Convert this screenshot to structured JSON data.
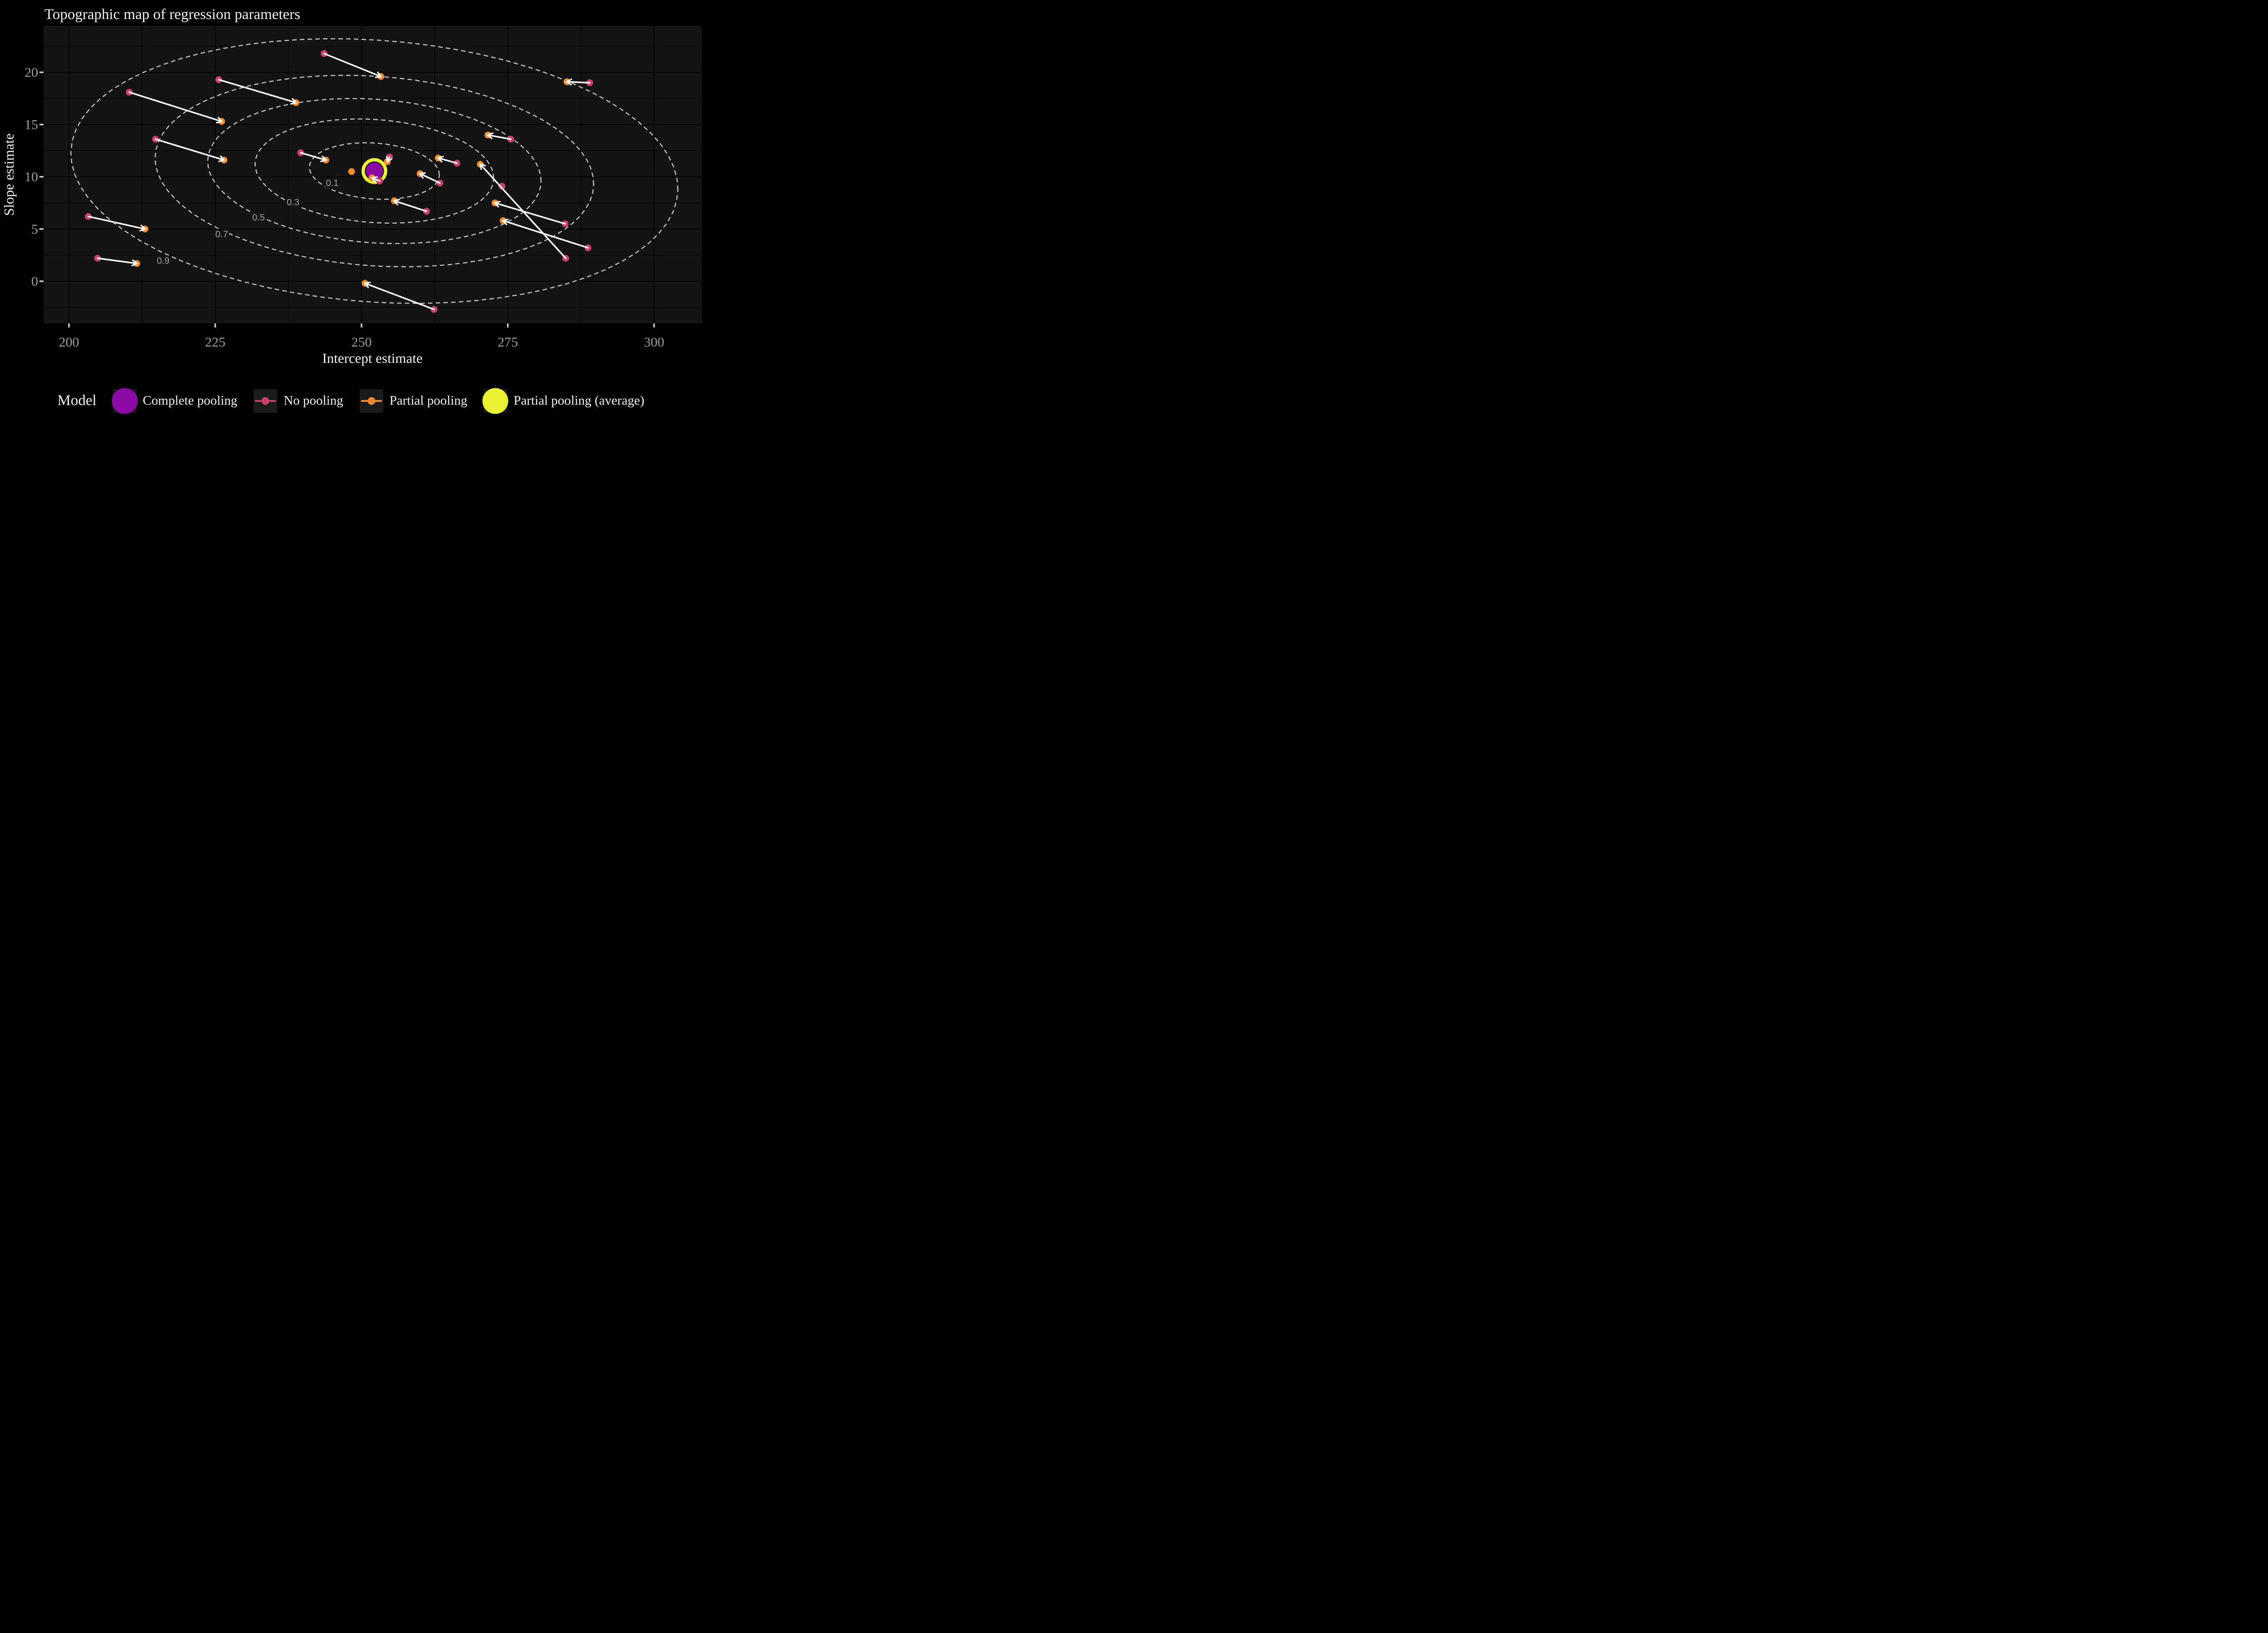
{
  "title": "Topographic map of regression parameters",
  "axes": {
    "x_label": "Intercept estimate",
    "y_label": "Slope estimate"
  },
  "legend": {
    "title": "Model",
    "items": [
      {
        "label": "Complete pooling",
        "type": "big-dot",
        "color_key": "purple"
      },
      {
        "label": "No pooling",
        "type": "dot-line",
        "color_key": "pink"
      },
      {
        "label": "Partial pooling",
        "type": "dot-line",
        "color_key": "orange"
      },
      {
        "label": "Partial pooling (average)",
        "type": "big-dot",
        "color_key": "yellow"
      }
    ]
  },
  "colors": {
    "background": "#000000",
    "panel": "#141414",
    "grid": "#000000",
    "contour": "#c9c9c9",
    "contour_label": "#9e9e9e",
    "tick_mark": "#cccccc",
    "tick_label": "#9e9e9e",
    "text": "#f5f1e8",
    "arrow": "#ffffff",
    "pink": "#c84169",
    "orange": "#f08a2e",
    "purple": "#8b0aa5",
    "yellow": "#e9f235"
  },
  "chart_data": {
    "type": "scatter",
    "title": "Topographic map of regression parameters",
    "xlabel": "Intercept estimate",
    "ylabel": "Slope estimate",
    "x_ticks": [
      200,
      225,
      250,
      275,
      300
    ],
    "y_ticks": [
      0,
      5,
      10,
      15,
      20
    ],
    "x_minor": [
      212.5,
      237.5,
      262.5,
      287.5
    ],
    "y_minor": [
      -2.5,
      2.5,
      7.5,
      12.5,
      17.5,
      22.5
    ],
    "xlim": [
      195.66,
      308.14
    ],
    "ylim": [
      -4.04,
      24.45
    ],
    "grid": true,
    "legend_position": "bottom",
    "contours": {
      "center": [
        252.2,
        10.55
      ],
      "angle_deg": -2,
      "levels": [
        {
          "level": "0.1",
          "rx": 11.1,
          "ry": 2.68,
          "label": [
            245.0,
            9.35
          ]
        },
        {
          "level": "0.3",
          "rx": 20.4,
          "ry": 4.94,
          "label": [
            238.3,
            7.5
          ]
        },
        {
          "level": "0.5",
          "rx": 28.5,
          "ry": 6.88,
          "label": [
            232.4,
            6.05
          ]
        },
        {
          "level": "0.7",
          "rx": 37.5,
          "ry": 9.08,
          "label": [
            226.1,
            4.45
          ]
        },
        {
          "level": "0.9",
          "rx": 51.9,
          "ry": 12.55,
          "label": [
            216.1,
            1.9
          ]
        }
      ]
    },
    "series": [
      {
        "name": "No pooling",
        "color_key": "pink"
      },
      {
        "name": "Partial pooling",
        "color_key": "orange"
      },
      {
        "name": "Complete pooling",
        "color_key": "purple"
      },
      {
        "name": "Partial pooling (average)",
        "color_key": "yellow"
      }
    ],
    "pairs": [
      {
        "no_pooling": [
          243.6,
          21.8
        ],
        "partial_pooling": [
          253.3,
          19.6
        ]
      },
      {
        "no_pooling": [
          289.0,
          19.0
        ],
        "partial_pooling": [
          285.1,
          19.1
        ]
      },
      {
        "no_pooling": [
          210.3,
          18.1
        ],
        "partial_pooling": [
          226.1,
          15.3
        ]
      },
      {
        "no_pooling": [
          225.6,
          19.3
        ],
        "partial_pooling": [
          238.8,
          17.1
        ]
      },
      {
        "no_pooling": [
          214.8,
          13.6
        ],
        "partial_pooling": [
          226.5,
          11.6
        ]
      },
      {
        "no_pooling": [
          275.5,
          13.6
        ],
        "partial_pooling": [
          271.6,
          14.0
        ]
      },
      {
        "no_pooling": [
          239.6,
          12.3
        ],
        "partial_pooling": [
          243.9,
          11.6
        ]
      },
      {
        "no_pooling": [
          266.3,
          11.3
        ],
        "partial_pooling": [
          263.1,
          11.8
        ]
      },
      {
        "no_pooling": [
          263.4,
          9.4
        ],
        "partial_pooling": [
          260.0,
          10.3
        ]
      },
      {
        "no_pooling": [
          284.9,
          2.2
        ],
        "partial_pooling": [
          270.3,
          11.2
        ]
      },
      {
        "no_pooling": [
          261.1,
          6.7
        ],
        "partial_pooling": [
          255.6,
          7.7
        ]
      },
      {
        "no_pooling": [
          203.3,
          6.2
        ],
        "partial_pooling": [
          213.0,
          5.0
        ]
      },
      {
        "no_pooling": [
          204.9,
          2.2
        ],
        "partial_pooling": [
          211.6,
          1.7
        ]
      },
      {
        "no_pooling": [
          284.8,
          5.5
        ],
        "partial_pooling": [
          272.8,
          7.5
        ]
      },
      {
        "no_pooling": [
          288.7,
          3.2
        ],
        "partial_pooling": [
          274.2,
          5.8
        ]
      },
      {
        "no_pooling": [
          262.4,
          -2.7
        ],
        "partial_pooling": [
          250.6,
          -0.2
        ]
      },
      {
        "no_pooling": [
          253.1,
          9.6
        ],
        "partial_pooling": [
          251.8,
          9.9
        ]
      },
      {
        "no_pooling": [
          254.8,
          11.9
        ],
        "partial_pooling": [
          254.4,
          11.45
        ]
      }
    ],
    "lone_no_pooling": [
      [
        274.0,
        9.1
      ]
    ],
    "lone_partial_pooling": [
      [
        248.3,
        10.5
      ]
    ],
    "complete_pooling": [
      252.2,
      10.55
    ],
    "partial_pooling_average": [
      252.2,
      10.55
    ]
  }
}
